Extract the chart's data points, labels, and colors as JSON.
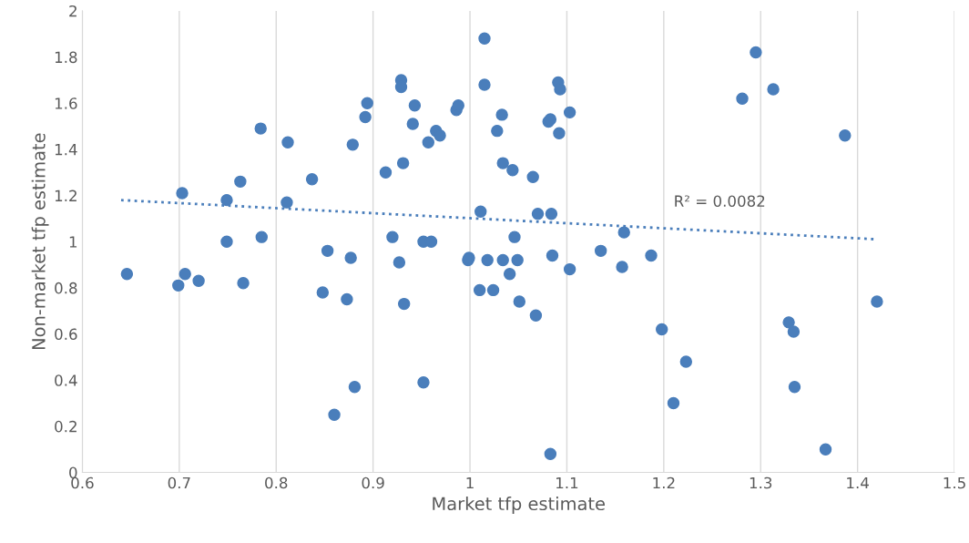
{
  "chart_data": {
    "type": "scatter",
    "xlabel": "Market tfp estimate",
    "ylabel": "Non-market tfp estimate",
    "xlim": [
      0.6,
      1.5
    ],
    "xticks": [
      0.6,
      0.7,
      0.8,
      0.9,
      1,
      1.1,
      1.2,
      1.3,
      1.4,
      1.5
    ],
    "ylim": [
      0,
      2
    ],
    "yticks": [
      0,
      0.2,
      0.4,
      0.6,
      0.8,
      1,
      1.2,
      1.4,
      1.6,
      1.8,
      2
    ],
    "grid": "x",
    "marker": "circle",
    "legend": false,
    "series": [
      {
        "color": "#4a7ebb",
        "x": [
          0.646,
          0.703,
          0.706,
          0.699,
          0.72,
          0.749,
          0.749,
          0.763,
          0.766,
          0.784,
          0.785,
          0.812,
          0.811,
          0.837,
          0.848,
          0.853,
          0.86,
          0.873,
          0.877,
          0.879,
          0.881,
          0.892,
          0.894,
          0.913,
          0.92,
          0.927,
          0.929,
          0.929,
          0.931,
          0.932,
          0.941,
          0.943,
          0.952,
          0.952,
          0.957,
          0.96,
          0.965,
          0.969,
          0.986,
          0.988,
          0.998,
          0.999,
          1.011,
          1.01,
          1.015,
          1.015,
          1.018,
          1.024,
          1.028,
          1.033,
          1.034,
          1.034,
          1.041,
          1.044,
          1.046,
          1.049,
          1.051,
          1.065,
          1.068,
          1.07,
          1.081,
          1.083,
          1.083,
          1.084,
          1.085,
          1.091,
          1.093,
          1.092,
          1.103,
          1.103,
          1.135,
          1.157,
          1.159,
          1.187,
          1.198,
          1.21,
          1.223,
          1.281,
          1.295,
          1.313,
          1.329,
          1.334,
          1.335,
          1.367,
          1.387,
          1.42
        ],
        "values": [
          0.86,
          1.21,
          0.86,
          0.81,
          0.83,
          1.18,
          1.0,
          1.26,
          0.82,
          1.49,
          1.02,
          1.43,
          1.17,
          1.27,
          0.78,
          0.96,
          0.25,
          0.75,
          0.93,
          1.42,
          0.37,
          1.54,
          1.6,
          1.3,
          1.02,
          0.91,
          1.7,
          1.67,
          1.34,
          0.73,
          1.51,
          1.59,
          0.39,
          1.0,
          1.43,
          1.0,
          1.48,
          1.46,
          1.57,
          1.59,
          0.92,
          0.93,
          1.13,
          0.79,
          1.88,
          1.68,
          0.92,
          0.79,
          1.48,
          1.55,
          1.34,
          0.92,
          0.86,
          1.31,
          1.02,
          0.92,
          0.74,
          1.28,
          0.68,
          1.12,
          1.52,
          1.53,
          0.08,
          1.12,
          0.94,
          1.69,
          1.66,
          1.47,
          1.56,
          0.88,
          0.96,
          0.89,
          1.04,
          0.94,
          0.62,
          0.3,
          0.48,
          1.62,
          1.82,
          1.66,
          0.65,
          0.61,
          0.37,
          0.1,
          1.46,
          0.74
        ]
      },
      {
        "type": "line",
        "color": "#4a7ebb",
        "line_style": "dotted",
        "marker": "none",
        "x": [
          0.64,
          1.42
        ],
        "values": [
          1.18,
          1.01
        ]
      }
    ],
    "annotations": [
      "R² = 0.0082"
    ]
  }
}
